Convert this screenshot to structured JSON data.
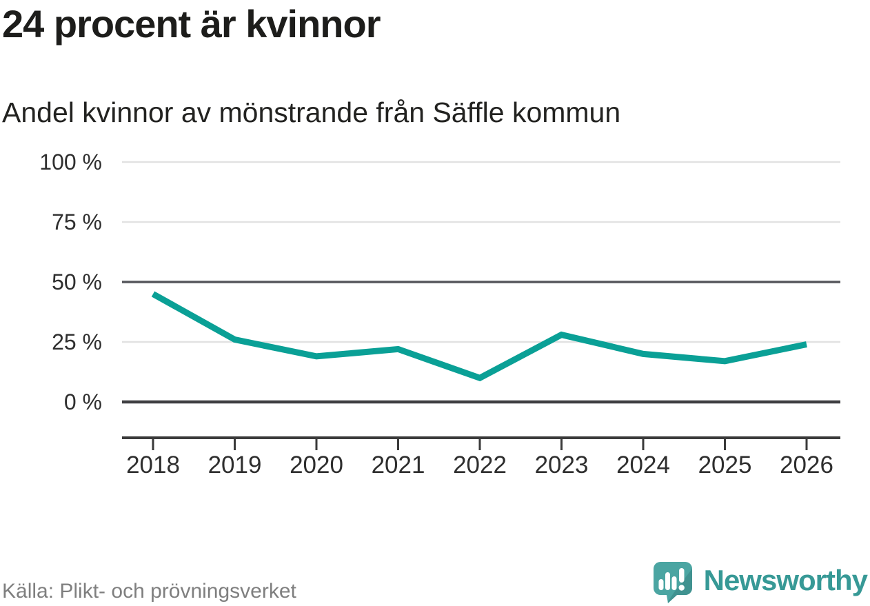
{
  "title": "24 procent är kvinnor",
  "subtitle": "Andel kvinnor av mönstrande från Säffle kommun",
  "source": "Källa: Plikt- och prövningsverket",
  "brand": {
    "name": "Newsworthy",
    "icon": "bar-chart-speech-bubble-icon"
  },
  "colors": {
    "line": "#0aa096",
    "grid_light": "#e2e2e2",
    "grid_mid": "#55565b",
    "grid_dark": "#3f3f42",
    "axis": "#3a3a3a",
    "title_text": "#1d1d1b",
    "tick_text": "#2e2e2e",
    "source_text": "#7f7f7f",
    "logo_teal": "#4ba5a2",
    "logo_teal_dark": "#3e8e8d",
    "brand_text": "#379996"
  },
  "chart_data": {
    "type": "line",
    "title": "24 procent är kvinnor",
    "subtitle": "Andel kvinnor av mönstrande från Säffle kommun",
    "categories": [
      "2018",
      "2019",
      "2020",
      "2021",
      "2022",
      "2023",
      "2024",
      "2025",
      "2026"
    ],
    "series": [
      {
        "name": "Andel kvinnor av mönstrande från Säffle kommun",
        "values": [
          45,
          26,
          19,
          22,
          10,
          28,
          20,
          17,
          24
        ]
      }
    ],
    "unit": "%",
    "ylim": [
      0,
      100
    ],
    "ytick_labels": [
      "100 %",
      "75 %",
      "50 %",
      "25 %",
      "0 %"
    ],
    "ytick_values": [
      100,
      75,
      50,
      25,
      0
    ],
    "emphasized_gridlines": [
      50,
      0
    ],
    "grid": "horizontal",
    "legend": "none",
    "source_label": "Källa: Plikt- och prövningsverket"
  }
}
